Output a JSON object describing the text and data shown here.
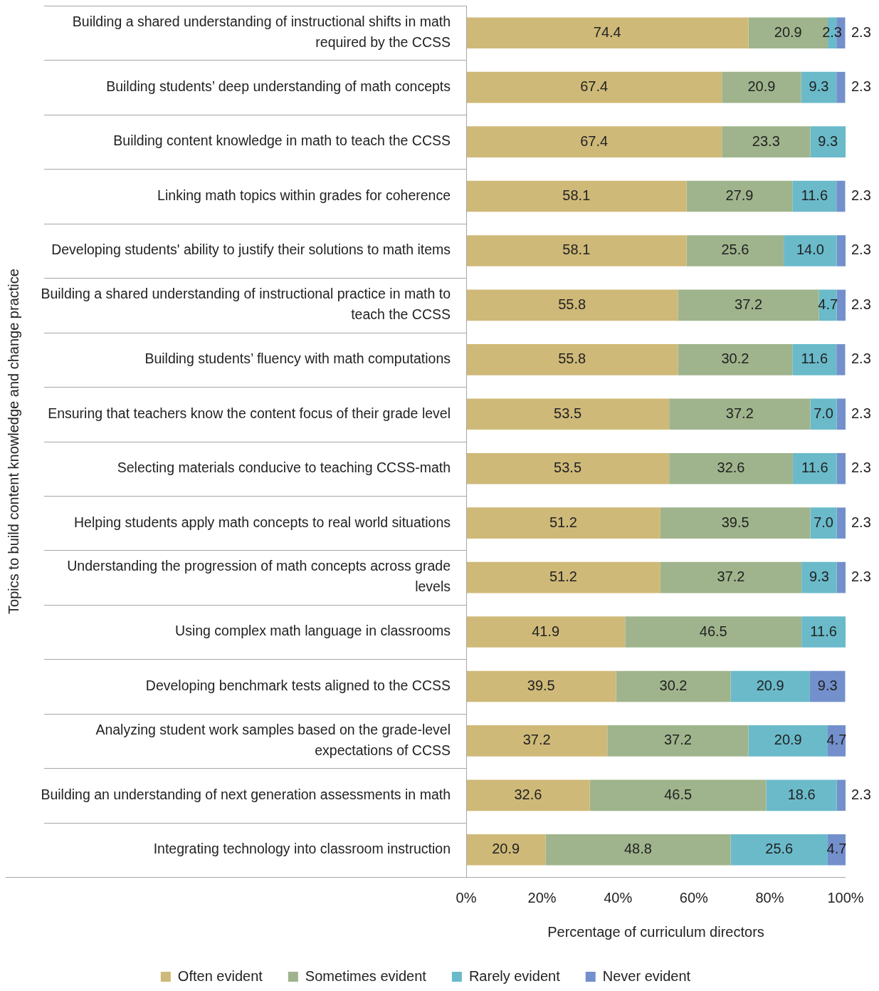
{
  "chart_data": {
    "type": "bar",
    "orientation": "horizontal",
    "stacked": true,
    "data_labels": true,
    "legend": "bottom",
    "grid": false,
    "ylabel": "Topics to build content knowledge and change practice",
    "xlabel": "Percentage of curriculum directors",
    "xlim": [
      0,
      100
    ],
    "xticks": [
      {
        "value": 0,
        "label": "0%"
      },
      {
        "value": 20,
        "label": "20%"
      },
      {
        "value": 40,
        "label": "40%"
      },
      {
        "value": 60,
        "label": "60%"
      },
      {
        "value": 80,
        "label": "80%"
      },
      {
        "value": 100,
        "label": "100%"
      }
    ],
    "categories": [
      "Building a shared understanding of instructional shifts in math required by the CCSS",
      "Building students’ deep understanding of math concepts",
      "Building content knowledge in math to teach the CCSS",
      "Linking math topics within grades for coherence",
      "Developing students' ability to justify their solutions to math items",
      "Building a shared understanding of instructional practice in math to teach the CCSS",
      "Building students’ fluency with math computations",
      "Ensuring that teachers know the content focus of their grade level",
      "Selecting materials conducive to teaching CCSS-math",
      "Helping students apply math concepts to real world situations",
      "Understanding the progression of math concepts across grade levels",
      "Using complex math language in classrooms",
      "Developing benchmark tests aligned to the CCSS",
      "Analyzing student work samples based on the grade-level expectations of CCSS",
      "Building an understanding of next generation assessments in math",
      "Integrating technology into classroom instruction"
    ],
    "series": [
      {
        "name": "Often evident",
        "color": "#cfb978",
        "values": [
          74.4,
          67.4,
          67.4,
          58.1,
          58.1,
          55.8,
          55.8,
          53.5,
          53.5,
          51.2,
          51.2,
          41.9,
          39.5,
          37.2,
          32.6,
          20.9
        ]
      },
      {
        "name": "Sometimes evident",
        "color": "#9fb48c",
        "values": [
          20.9,
          20.9,
          23.3,
          27.9,
          25.6,
          37.2,
          30.2,
          37.2,
          32.6,
          39.5,
          37.2,
          46.5,
          30.2,
          37.2,
          46.5,
          48.8
        ]
      },
      {
        "name": "Rarely evident",
        "color": "#6abaca",
        "values": [
          2.3,
          9.3,
          9.3,
          11.6,
          14.0,
          4.7,
          11.6,
          7.0,
          11.6,
          7.0,
          9.3,
          11.6,
          20.9,
          20.9,
          18.6,
          25.6
        ],
        "value_labels": [
          "2.3",
          "9.3",
          "9.3",
          "11.6",
          "14.0",
          "4.7",
          "11.6",
          "7.0",
          "11.6",
          "7.0",
          "9.3",
          "11.6",
          "20.9",
          "20.9",
          "18.6",
          "25.6"
        ]
      },
      {
        "name": "Never evident",
        "color": "#7390cc",
        "values": [
          2.3,
          2.3,
          null,
          2.3,
          2.3,
          2.3,
          2.3,
          2.3,
          2.3,
          2.3,
          2.3,
          null,
          9.3,
          4.7,
          2.3,
          4.7
        ]
      }
    ]
  }
}
